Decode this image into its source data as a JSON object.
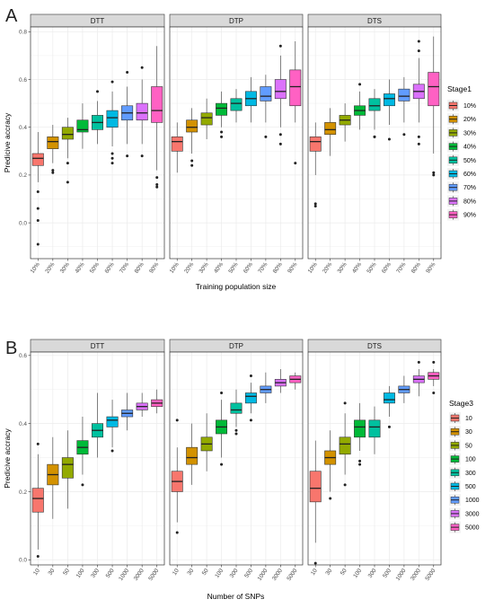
{
  "chart_data": [
    {
      "type": "box",
      "panel_label": "A",
      "facets": [
        "DTT",
        "DTP",
        "DTS"
      ],
      "categories": [
        "10%",
        "20%",
        "30%",
        "40%",
        "50%",
        "60%",
        "70%",
        "80%",
        "90%"
      ],
      "colors": [
        "#F8766D",
        "#D39200",
        "#93AA00",
        "#00BA38",
        "#00C19F",
        "#00B9E3",
        "#619CFF",
        "#DB72FB",
        "#FF61C3"
      ],
      "xlabel": "Training population size",
      "ylabel": "Predicive accracy",
      "ylim": [
        -0.15,
        0.82
      ],
      "yticks": [
        0.0,
        0.2,
        0.4,
        0.6,
        0.8
      ],
      "ytick_labels": [
        "0.0",
        "0.2",
        "0.4",
        "0.6",
        "0.8"
      ],
      "grid": true,
      "legend_title": "Stage1",
      "legend_position": "right",
      "series": [
        {
          "facet": "DTT",
          "boxes": [
            {
              "min": 0.17,
              "q1": 0.24,
              "median": 0.27,
              "q3": 0.29,
              "max": 0.38,
              "outliers": [
                0.13,
                0.06,
                0.01,
                -0.09
              ]
            },
            {
              "min": 0.25,
              "q1": 0.31,
              "median": 0.34,
              "q3": 0.36,
              "max": 0.41,
              "outliers": [
                0.22,
                0.21
              ]
            },
            {
              "min": 0.27,
              "q1": 0.35,
              "median": 0.37,
              "q3": 0.4,
              "max": 0.44,
              "outliers": [
                0.25,
                0.17
              ]
            },
            {
              "min": 0.31,
              "q1": 0.38,
              "median": 0.39,
              "q3": 0.43,
              "max": 0.5,
              "outliers": []
            },
            {
              "min": 0.33,
              "q1": 0.39,
              "median": 0.42,
              "q3": 0.45,
              "max": 0.51,
              "outliers": [
                0.55
              ]
            },
            {
              "min": 0.32,
              "q1": 0.4,
              "median": 0.44,
              "q3": 0.47,
              "max": 0.55,
              "outliers": [
                0.59,
                0.29,
                0.27,
                0.25
              ]
            },
            {
              "min": 0.33,
              "q1": 0.43,
              "median": 0.46,
              "q3": 0.49,
              "max": 0.57,
              "outliers": [
                0.63,
                0.28
              ]
            },
            {
              "min": 0.33,
              "q1": 0.43,
              "median": 0.46,
              "q3": 0.5,
              "max": 0.6,
              "outliers": [
                0.65,
                0.28
              ]
            },
            {
              "min": 0.22,
              "q1": 0.42,
              "median": 0.47,
              "q3": 0.57,
              "max": 0.74,
              "outliers": [
                0.19,
                0.16,
                0.15
              ]
            }
          ]
        },
        {
          "facet": "DTP",
          "boxes": [
            {
              "min": 0.21,
              "q1": 0.3,
              "median": 0.34,
              "q3": 0.36,
              "max": 0.42,
              "outliers": []
            },
            {
              "min": 0.29,
              "q1": 0.38,
              "median": 0.4,
              "q3": 0.43,
              "max": 0.48,
              "outliers": [
                0.26,
                0.24
              ]
            },
            {
              "min": 0.35,
              "q1": 0.41,
              "median": 0.44,
              "q3": 0.46,
              "max": 0.52,
              "outliers": []
            },
            {
              "min": 0.4,
              "q1": 0.45,
              "median": 0.48,
              "q3": 0.5,
              "max": 0.55,
              "outliers": [
                0.38,
                0.36
              ]
            },
            {
              "min": 0.42,
              "q1": 0.47,
              "median": 0.5,
              "q3": 0.52,
              "max": 0.56,
              "outliers": []
            },
            {
              "min": 0.42,
              "q1": 0.49,
              "median": 0.52,
              "q3": 0.55,
              "max": 0.61,
              "outliers": []
            },
            {
              "min": 0.42,
              "q1": 0.51,
              "median": 0.53,
              "q3": 0.57,
              "max": 0.62,
              "outliers": [
                0.36
              ]
            },
            {
              "min": 0.4,
              "q1": 0.52,
              "median": 0.55,
              "q3": 0.6,
              "max": 0.7,
              "outliers": [
                0.74,
                0.37,
                0.33
              ]
            },
            {
              "min": 0.42,
              "q1": 0.49,
              "median": 0.57,
              "q3": 0.64,
              "max": 0.76,
              "outliers": [
                0.25
              ]
            }
          ]
        },
        {
          "facet": "DTS",
          "boxes": [
            {
              "min": 0.2,
              "q1": 0.3,
              "median": 0.34,
              "q3": 0.36,
              "max": 0.42,
              "outliers": [
                0.08,
                0.07
              ]
            },
            {
              "min": 0.28,
              "q1": 0.37,
              "median": 0.39,
              "q3": 0.42,
              "max": 0.48,
              "outliers": []
            },
            {
              "min": 0.34,
              "q1": 0.41,
              "median": 0.43,
              "q3": 0.45,
              "max": 0.5,
              "outliers": []
            },
            {
              "min": 0.39,
              "q1": 0.45,
              "median": 0.47,
              "q3": 0.49,
              "max": 0.55,
              "outliers": [
                0.58
              ]
            },
            {
              "min": 0.39,
              "q1": 0.47,
              "median": 0.49,
              "q3": 0.52,
              "max": 0.56,
              "outliers": [
                0.36,
                0.36
              ]
            },
            {
              "min": 0.41,
              "q1": 0.49,
              "median": 0.52,
              "q3": 0.54,
              "max": 0.6,
              "outliers": [
                0.35
              ]
            },
            {
              "min": 0.42,
              "q1": 0.51,
              "median": 0.53,
              "q3": 0.56,
              "max": 0.61,
              "outliers": [
                0.37
              ]
            },
            {
              "min": 0.42,
              "q1": 0.52,
              "median": 0.55,
              "q3": 0.58,
              "max": 0.69,
              "outliers": [
                0.76,
                0.72,
                0.36,
                0.33
              ]
            },
            {
              "min": 0.29,
              "q1": 0.49,
              "median": 0.57,
              "q3": 0.63,
              "max": 0.78,
              "outliers": [
                0.21,
                0.2
              ]
            }
          ]
        }
      ]
    },
    {
      "type": "box",
      "panel_label": "B",
      "facets": [
        "DTT",
        "DTP",
        "DTS"
      ],
      "categories": [
        "10",
        "30",
        "50",
        "100",
        "300",
        "500",
        "1000",
        "3000",
        "5000"
      ],
      "colors": [
        "#F8766D",
        "#D39200",
        "#93AA00",
        "#00BA38",
        "#00C19F",
        "#00B9E3",
        "#619CFF",
        "#DB72FB",
        "#FF61C3"
      ],
      "xlabel": "Number of SNPs",
      "ylabel": "Predicive accracy",
      "ylim": [
        -0.015,
        0.61
      ],
      "yticks": [
        0.0,
        0.2,
        0.4,
        0.6
      ],
      "ytick_labels": [
        "0.0",
        "0.2",
        "0.4",
        "0.6"
      ],
      "grid": true,
      "legend_title": "Stage3",
      "legend_position": "right",
      "series": [
        {
          "facet": "DTT",
          "boxes": [
            {
              "min": 0.03,
              "q1": 0.14,
              "median": 0.18,
              "q3": 0.21,
              "max": 0.31,
              "outliers": [
                0.34,
                0.01
              ]
            },
            {
              "min": 0.12,
              "q1": 0.22,
              "median": 0.25,
              "q3": 0.28,
              "max": 0.36,
              "outliers": []
            },
            {
              "min": 0.15,
              "q1": 0.24,
              "median": 0.28,
              "q3": 0.3,
              "max": 0.38,
              "outliers": []
            },
            {
              "min": 0.25,
              "q1": 0.31,
              "median": 0.33,
              "q3": 0.35,
              "max": 0.42,
              "outliers": [
                0.22
              ]
            },
            {
              "min": 0.3,
              "q1": 0.36,
              "median": 0.38,
              "q3": 0.4,
              "max": 0.49,
              "outliers": []
            },
            {
              "min": 0.33,
              "q1": 0.39,
              "median": 0.41,
              "q3": 0.42,
              "max": 0.47,
              "outliers": [
                0.32
              ]
            },
            {
              "min": 0.38,
              "q1": 0.42,
              "median": 0.43,
              "q3": 0.44,
              "max": 0.49,
              "outliers": []
            },
            {
              "min": 0.42,
              "q1": 0.44,
              "median": 0.45,
              "q3": 0.46,
              "max": 0.49,
              "outliers": []
            },
            {
              "min": 0.43,
              "q1": 0.45,
              "median": 0.46,
              "q3": 0.47,
              "max": 0.5,
              "outliers": []
            }
          ]
        },
        {
          "facet": "DTP",
          "boxes": [
            {
              "min": 0.11,
              "q1": 0.2,
              "median": 0.23,
              "q3": 0.26,
              "max": 0.33,
              "outliers": [
                0.41,
                0.08
              ]
            },
            {
              "min": 0.22,
              "q1": 0.28,
              "median": 0.3,
              "q3": 0.33,
              "max": 0.4,
              "outliers": []
            },
            {
              "min": 0.26,
              "q1": 0.32,
              "median": 0.34,
              "q3": 0.36,
              "max": 0.43,
              "outliers": []
            },
            {
              "min": 0.3,
              "q1": 0.37,
              "median": 0.39,
              "q3": 0.41,
              "max": 0.47,
              "outliers": [
                0.49,
                0.28
              ]
            },
            {
              "min": 0.39,
              "q1": 0.43,
              "median": 0.44,
              "q3": 0.46,
              "max": 0.5,
              "outliers": [
                0.38,
                0.37
              ]
            },
            {
              "min": 0.43,
              "q1": 0.46,
              "median": 0.48,
              "q3": 0.49,
              "max": 0.52,
              "outliers": [
                0.54,
                0.41
              ]
            },
            {
              "min": 0.46,
              "q1": 0.49,
              "median": 0.5,
              "q3": 0.51,
              "max": 0.55,
              "outliers": []
            },
            {
              "min": 0.49,
              "q1": 0.51,
              "median": 0.52,
              "q3": 0.53,
              "max": 0.56,
              "outliers": []
            },
            {
              "min": 0.5,
              "q1": 0.52,
              "median": 0.53,
              "q3": 0.54,
              "max": 0.55,
              "outliers": []
            }
          ]
        },
        {
          "facet": "DTS",
          "boxes": [
            {
              "min": 0.05,
              "q1": 0.17,
              "median": 0.21,
              "q3": 0.26,
              "max": 0.35,
              "outliers": [
                -0.01
              ]
            },
            {
              "min": 0.2,
              "q1": 0.28,
              "median": 0.3,
              "q3": 0.32,
              "max": 0.38,
              "outliers": [
                0.18
              ]
            },
            {
              "min": 0.25,
              "q1": 0.31,
              "median": 0.34,
              "q3": 0.36,
              "max": 0.43,
              "outliers": [
                0.46,
                0.22
              ]
            },
            {
              "min": 0.32,
              "q1": 0.36,
              "median": 0.39,
              "q3": 0.41,
              "max": 0.46,
              "outliers": [
                0.29,
                0.28
              ]
            },
            {
              "min": 0.31,
              "q1": 0.36,
              "median": 0.39,
              "q3": 0.41,
              "max": 0.45,
              "outliers": []
            },
            {
              "min": 0.42,
              "q1": 0.46,
              "median": 0.47,
              "q3": 0.49,
              "max": 0.51,
              "outliers": [
                0.39
              ]
            },
            {
              "min": 0.46,
              "q1": 0.49,
              "median": 0.5,
              "q3": 0.51,
              "max": 0.54,
              "outliers": []
            },
            {
              "min": 0.48,
              "q1": 0.52,
              "median": 0.53,
              "q3": 0.54,
              "max": 0.56,
              "outliers": [
                0.58
              ]
            },
            {
              "min": 0.51,
              "q1": 0.53,
              "median": 0.54,
              "q3": 0.55,
              "max": 0.56,
              "outliers": [
                0.58,
                0.49
              ]
            }
          ]
        }
      ]
    }
  ]
}
